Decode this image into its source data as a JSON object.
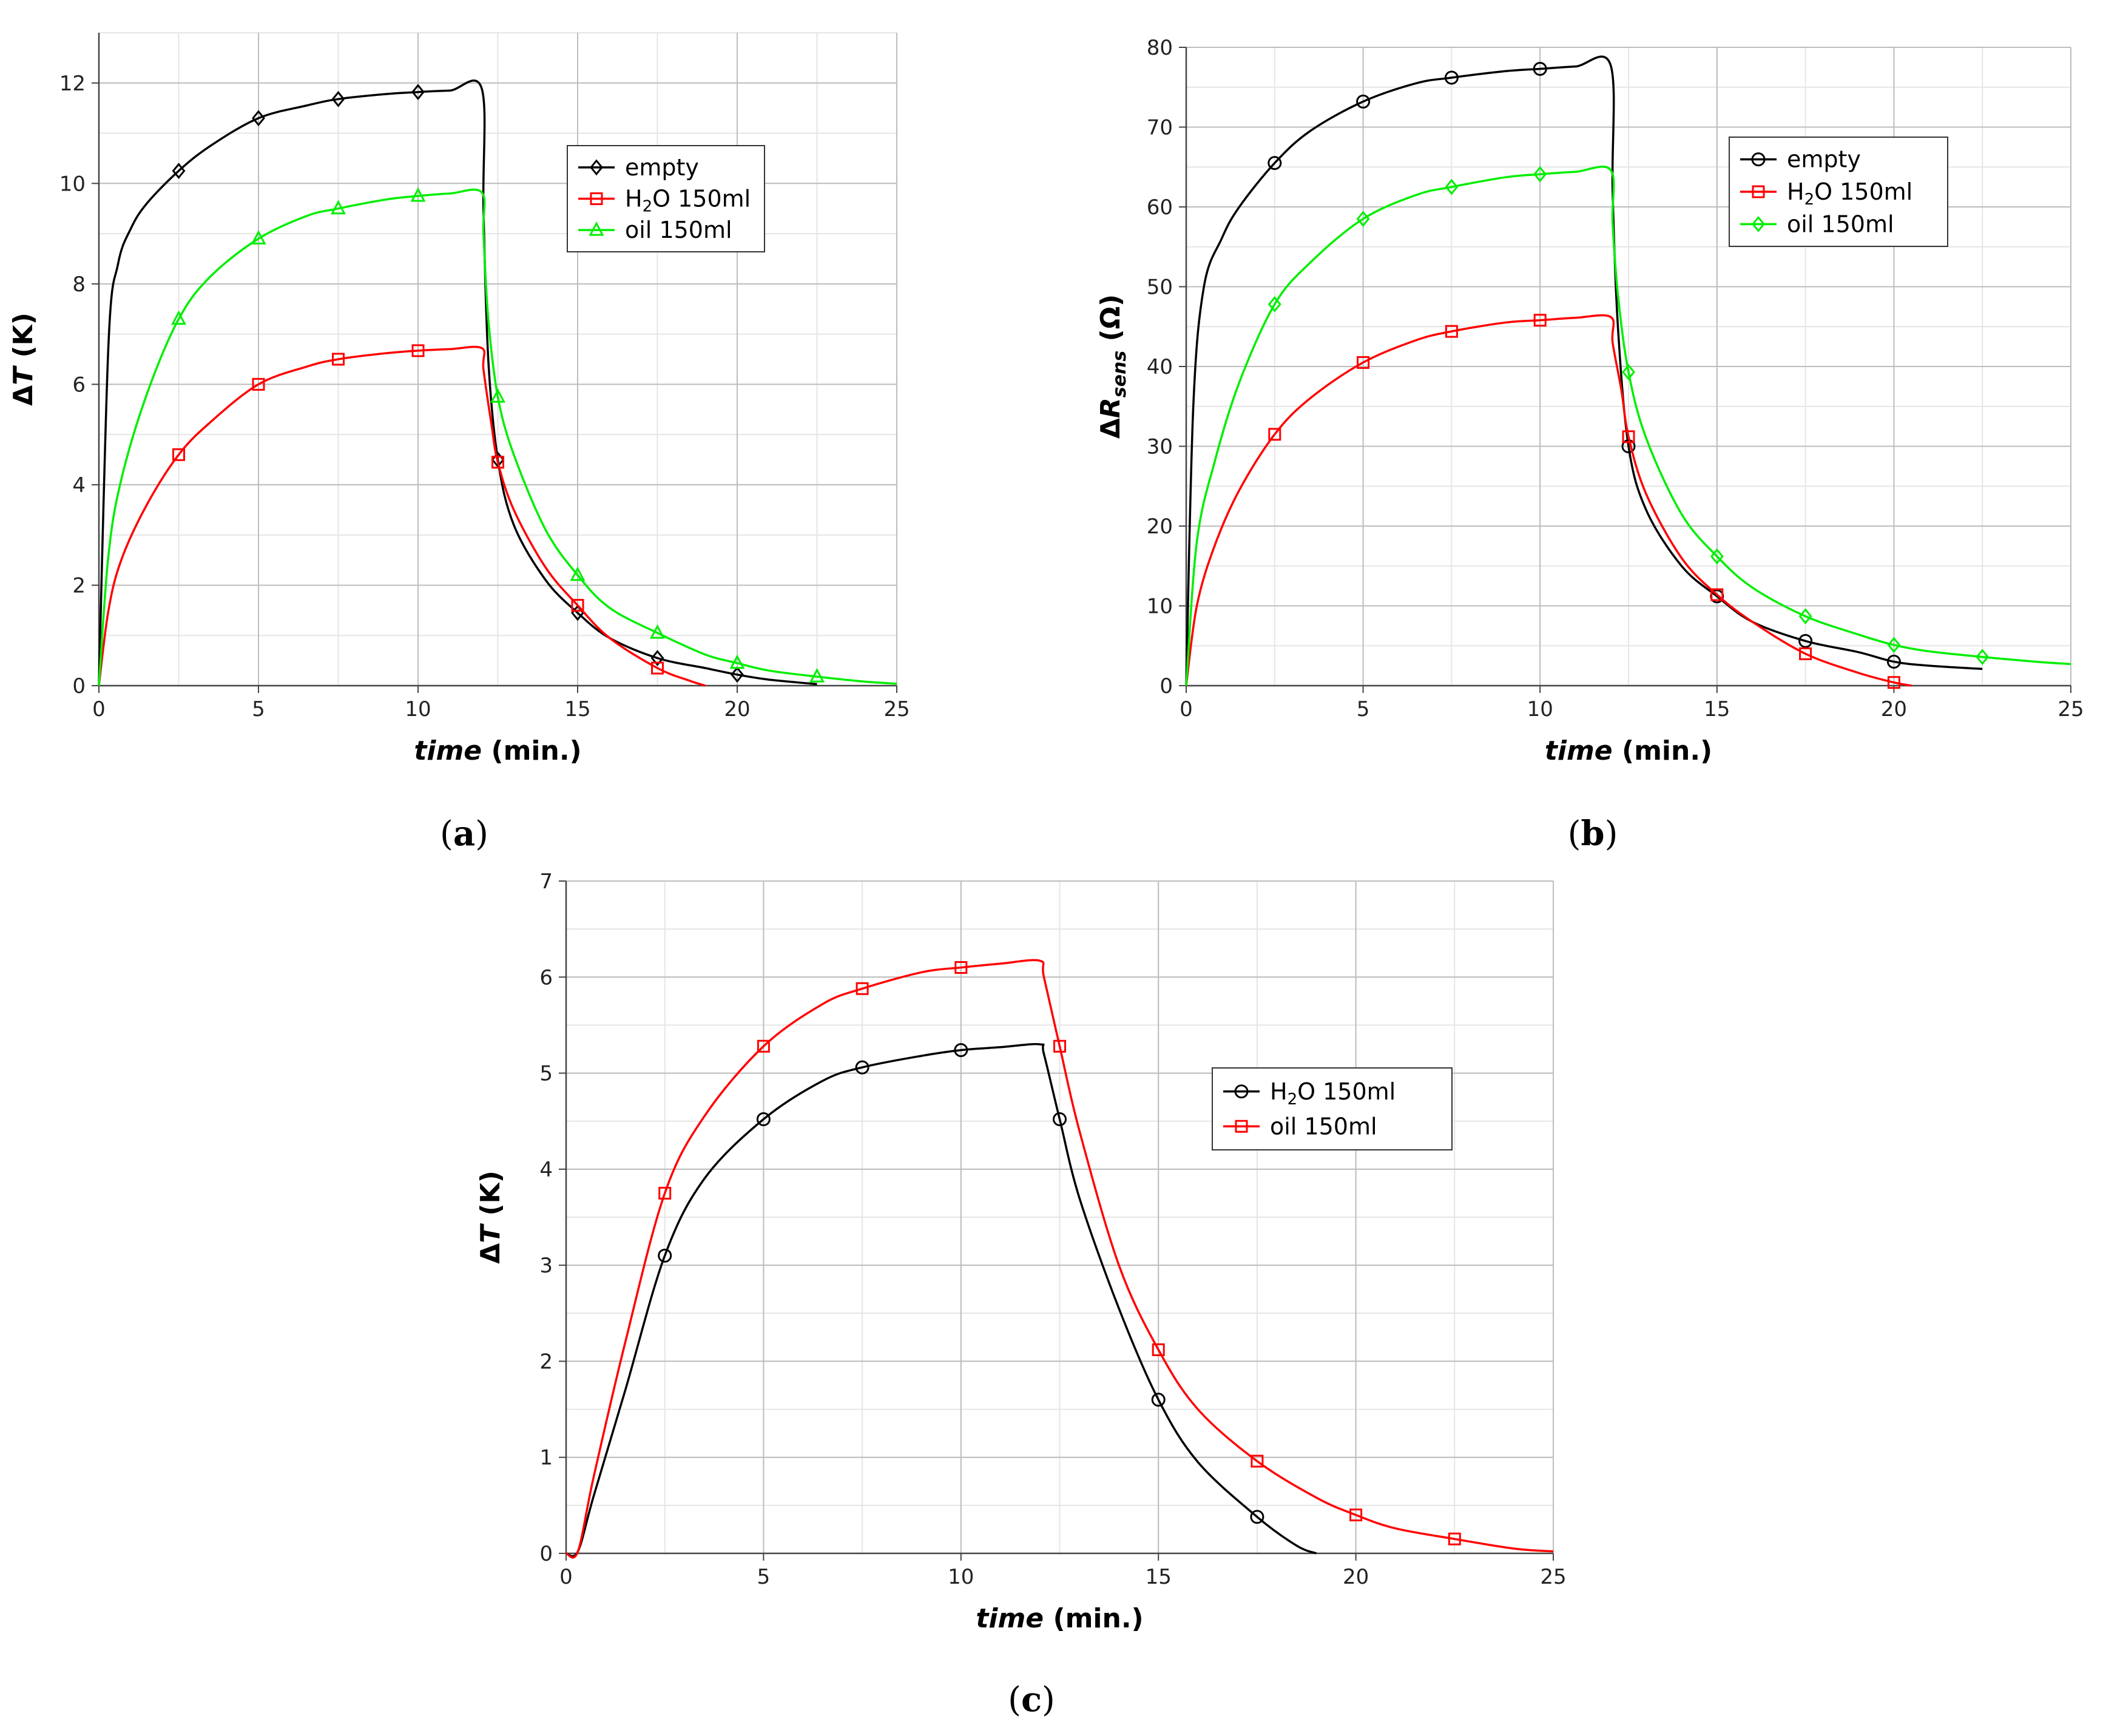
{
  "chart_data": [
    {
      "id": "a",
      "type": "line",
      "caption": "(a)",
      "xlabel_italic": "time",
      "xlabel_unit": " (min.)",
      "ylabel": {
        "parts": [
          [
            "Δ",
            false
          ],
          [
            "T",
            false
          ],
          [
            " (K)",
            false
          ]
        ]
      },
      "xlim": [
        0,
        25
      ],
      "ylim": [
        0,
        13
      ],
      "xticks": [
        0,
        5,
        10,
        15,
        20,
        25
      ],
      "yticks": [
        0,
        2,
        4,
        6,
        8,
        10,
        12
      ],
      "grid": true,
      "legend_position": "top-right",
      "series": [
        {
          "name": "empty",
          "legend": [
            [
              "empty",
              ""
            ]
          ],
          "color": "#000000",
          "marker": "diamond",
          "points": [
            [
              0,
              0
            ],
            [
              0.3,
              6.8
            ],
            [
              0.6,
              8.4
            ],
            [
              1,
              9.1
            ],
            [
              1.5,
              9.6
            ],
            [
              2.5,
              10.25
            ],
            [
              3.5,
              10.75
            ],
            [
              5,
              11.3
            ],
            [
              6.5,
              11.55
            ],
            [
              7.5,
              11.68
            ],
            [
              9,
              11.78
            ],
            [
              10,
              11.82
            ],
            [
              11,
              11.85
            ],
            [
              12,
              11.88
            ],
            [
              12.05,
              9.5
            ],
            [
              12.2,
              6.5
            ],
            [
              12.5,
              4.5
            ],
            [
              13,
              3.2
            ],
            [
              14,
              2.1
            ],
            [
              15,
              1.45
            ],
            [
              16,
              0.95
            ],
            [
              17.5,
              0.55
            ],
            [
              19,
              0.35
            ],
            [
              20,
              0.22
            ],
            [
              21,
              0.12
            ],
            [
              22.5,
              0.03
            ]
          ],
          "markers_x": [
            2.5,
            5,
            7.5,
            10,
            12.5,
            15,
            17.5,
            20
          ]
        },
        {
          "name": "H2O 150ml",
          "legend": [
            [
              "H",
              ""
            ],
            [
              "2",
              "sub"
            ],
            [
              "O 150ml",
              ""
            ]
          ],
          "color": "#ff0000",
          "marker": "square",
          "points": [
            [
              0,
              0
            ],
            [
              0.3,
              1.5
            ],
            [
              0.7,
              2.5
            ],
            [
              1.5,
              3.6
            ],
            [
              2.5,
              4.6
            ],
            [
              3.5,
              5.25
            ],
            [
              5,
              6.0
            ],
            [
              6.5,
              6.35
            ],
            [
              7.5,
              6.5
            ],
            [
              9,
              6.62
            ],
            [
              10,
              6.67
            ],
            [
              11,
              6.7
            ],
            [
              12,
              6.72
            ],
            [
              12.05,
              6.3
            ],
            [
              12.3,
              5.2
            ],
            [
              12.5,
              4.45
            ],
            [
              13,
              3.5
            ],
            [
              14,
              2.35
            ],
            [
              15,
              1.6
            ],
            [
              16,
              0.95
            ],
            [
              17.5,
              0.35
            ],
            [
              18.5,
              0.1
            ],
            [
              19,
              0
            ]
          ],
          "markers_x": [
            2.5,
            5,
            7.5,
            10,
            12.5,
            15,
            17.5
          ]
        },
        {
          "name": "oil 150ml",
          "legend": [
            [
              "oil 150ml",
              ""
            ]
          ],
          "color": "#00ee00",
          "marker": "triangle",
          "points": [
            [
              0,
              0
            ],
            [
              0.3,
              2.6
            ],
            [
              0.7,
              4.1
            ],
            [
              1.5,
              5.8
            ],
            [
              2.5,
              7.3
            ],
            [
              3.5,
              8.15
            ],
            [
              5,
              8.9
            ],
            [
              6.5,
              9.35
            ],
            [
              7.5,
              9.5
            ],
            [
              9,
              9.68
            ],
            [
              10,
              9.75
            ],
            [
              11,
              9.8
            ],
            [
              12,
              9.82
            ],
            [
              12.05,
              9.0
            ],
            [
              12.2,
              7.3
            ],
            [
              12.5,
              5.75
            ],
            [
              13,
              4.6
            ],
            [
              14,
              3.1
            ],
            [
              15,
              2.2
            ],
            [
              16,
              1.55
            ],
            [
              17.5,
              1.05
            ],
            [
              19,
              0.62
            ],
            [
              20,
              0.45
            ],
            [
              21,
              0.3
            ],
            [
              22.5,
              0.18
            ],
            [
              24,
              0.08
            ],
            [
              25,
              0.04
            ]
          ],
          "markers_x": [
            2.5,
            5,
            7.5,
            10,
            12.5,
            15,
            17.5,
            20,
            22.5
          ]
        }
      ]
    },
    {
      "id": "b",
      "type": "line",
      "caption": "(b)",
      "xlabel_italic": "time",
      "xlabel_unit": " (min.)",
      "ylabel": {
        "parts": [
          [
            "Δ",
            false
          ],
          [
            "R",
            false
          ],
          [
            "sens",
            true
          ],
          [
            " (Ω)",
            false
          ]
        ]
      },
      "xlim": [
        0,
        25
      ],
      "ylim": [
        0,
        80
      ],
      "xticks": [
        0,
        5,
        10,
        15,
        20,
        25
      ],
      "yticks": [
        0,
        10,
        20,
        30,
        40,
        50,
        60,
        70,
        80
      ],
      "grid": true,
      "legend_position": "top-right",
      "series": [
        {
          "name": "empty",
          "legend": [
            [
              "empty",
              ""
            ]
          ],
          "color": "#000000",
          "marker": "circle",
          "points": [
            [
              0,
              0
            ],
            [
              0.2,
              35
            ],
            [
              0.5,
              50
            ],
            [
              1,
              56
            ],
            [
              1.5,
              60
            ],
            [
              2.5,
              65.5
            ],
            [
              3.5,
              69.5
            ],
            [
              5,
              73.2
            ],
            [
              6.5,
              75.5
            ],
            [
              7.5,
              76.2
            ],
            [
              9,
              77
            ],
            [
              10,
              77.3
            ],
            [
              11,
              77.6
            ],
            [
              12,
              77.7
            ],
            [
              12.05,
              62
            ],
            [
              12.2,
              45
            ],
            [
              12.5,
              30
            ],
            [
              13,
              22
            ],
            [
              14,
              15
            ],
            [
              15,
              11.2
            ],
            [
              16,
              8
            ],
            [
              17.5,
              5.6
            ],
            [
              19,
              4.2
            ],
            [
              20,
              3.0
            ],
            [
              21,
              2.5
            ],
            [
              22.5,
              2.1
            ]
          ],
          "markers_x": [
            2.5,
            5,
            7.5,
            10,
            12.5,
            15,
            17.5,
            20
          ]
        },
        {
          "name": "H2O 150ml",
          "legend": [
            [
              "H",
              ""
            ],
            [
              "2",
              "sub"
            ],
            [
              "O 150ml",
              ""
            ]
          ],
          "color": "#ff0000",
          "marker": "square",
          "points": [
            [
              0,
              0
            ],
            [
              0.3,
              10
            ],
            [
              0.8,
              17.5
            ],
            [
              1.5,
              24.5
            ],
            [
              2.5,
              31.5
            ],
            [
              3.5,
              36
            ],
            [
              5,
              40.5
            ],
            [
              6.5,
              43.3
            ],
            [
              7.5,
              44.4
            ],
            [
              9,
              45.5
            ],
            [
              10,
              45.8
            ],
            [
              11,
              46.1
            ],
            [
              12,
              46.2
            ],
            [
              12.05,
              43
            ],
            [
              12.3,
              37
            ],
            [
              12.5,
              31.2
            ],
            [
              13,
              24
            ],
            [
              14,
              16
            ],
            [
              15,
              11.4
            ],
            [
              16,
              8
            ],
            [
              17.5,
              4
            ],
            [
              19,
              1.6
            ],
            [
              20,
              0.4
            ],
            [
              20.5,
              0
            ]
          ],
          "markers_x": [
            2.5,
            5,
            7.5,
            10,
            12.5,
            15,
            17.5,
            20
          ]
        },
        {
          "name": "oil 150ml",
          "legend": [
            [
              "oil 150ml",
              ""
            ]
          ],
          "color": "#00ee00",
          "marker": "diamond",
          "points": [
            [
              0,
              0
            ],
            [
              0.3,
              18
            ],
            [
              0.8,
              28
            ],
            [
              1.5,
              38
            ],
            [
              2.5,
              47.8
            ],
            [
              3.5,
              53
            ],
            [
              5,
              58.5
            ],
            [
              6.5,
              61.5
            ],
            [
              7.5,
              62.5
            ],
            [
              9,
              63.7
            ],
            [
              10,
              64.1
            ],
            [
              11,
              64.4
            ],
            [
              12,
              64.6
            ],
            [
              12.05,
              58
            ],
            [
              12.2,
              49
            ],
            [
              12.5,
              39.3
            ],
            [
              13,
              31
            ],
            [
              14,
              21.5
            ],
            [
              15,
              16.2
            ],
            [
              16,
              12.3
            ],
            [
              17.5,
              8.7
            ],
            [
              19,
              6.4
            ],
            [
              20,
              5.1
            ],
            [
              21,
              4.3
            ],
            [
              22.5,
              3.6
            ],
            [
              24,
              3.0
            ],
            [
              25,
              2.7
            ]
          ],
          "markers_x": [
            2.5,
            5,
            7.5,
            10,
            12.5,
            15,
            17.5,
            20,
            22.5
          ]
        }
      ]
    },
    {
      "id": "c",
      "type": "line",
      "caption": "(c)",
      "xlabel_italic": "time",
      "xlabel_unit": " (min.)",
      "ylabel": {
        "parts": [
          [
            "Δ",
            false
          ],
          [
            "T",
            false
          ],
          [
            " (K)",
            false
          ]
        ]
      },
      "xlim": [
        0,
        25
      ],
      "ylim": [
        0,
        7
      ],
      "xticks": [
        0,
        5,
        10,
        15,
        20,
        25
      ],
      "yticks": [
        0,
        1,
        2,
        3,
        4,
        5,
        6,
        7
      ],
      "grid": true,
      "legend_position": "top-right",
      "series": [
        {
          "name": "H2O 150ml",
          "legend": [
            [
              "H",
              ""
            ],
            [
              "2",
              "sub"
            ],
            [
              "O 150ml",
              ""
            ]
          ],
          "color": "#000000",
          "marker": "circle",
          "points": [
            [
              0,
              0
            ],
            [
              0.3,
              0.02
            ],
            [
              0.7,
              0.6
            ],
            [
              1.5,
              1.7
            ],
            [
              2.5,
              3.1
            ],
            [
              3.5,
              3.9
            ],
            [
              5,
              4.52
            ],
            [
              6.5,
              4.92
            ],
            [
              7.5,
              5.06
            ],
            [
              9,
              5.18
            ],
            [
              10,
              5.24
            ],
            [
              11,
              5.27
            ],
            [
              12,
              5.3
            ],
            [
              12.1,
              5.2
            ],
            [
              12.5,
              4.52
            ],
            [
              13,
              3.7
            ],
            [
              14,
              2.55
            ],
            [
              15,
              1.6
            ],
            [
              16,
              0.95
            ],
            [
              17.5,
              0.38
            ],
            [
              18.5,
              0.08
            ],
            [
              19,
              0
            ]
          ],
          "markers_x": [
            2.5,
            5,
            7.5,
            10,
            12.5,
            15,
            17.5
          ]
        },
        {
          "name": "oil 150ml",
          "legend": [
            [
              "oil 150ml",
              ""
            ]
          ],
          "color": "#ff0000",
          "marker": "square",
          "points": [
            [
              0,
              0
            ],
            [
              0.3,
              0.02
            ],
            [
              0.7,
              0.8
            ],
            [
              1.5,
              2.2
            ],
            [
              2.5,
              3.75
            ],
            [
              3.5,
              4.55
            ],
            [
              5,
              5.28
            ],
            [
              6.5,
              5.72
            ],
            [
              7.5,
              5.88
            ],
            [
              9,
              6.05
            ],
            [
              10,
              6.1
            ],
            [
              11,
              6.14
            ],
            [
              12,
              6.17
            ],
            [
              12.1,
              6.0
            ],
            [
              12.5,
              5.28
            ],
            [
              13,
              4.4
            ],
            [
              14,
              3.0
            ],
            [
              15,
              2.12
            ],
            [
              16,
              1.5
            ],
            [
              17.5,
              0.96
            ],
            [
              19,
              0.58
            ],
            [
              20,
              0.4
            ],
            [
              21,
              0.26
            ],
            [
              22.5,
              0.15
            ],
            [
              24,
              0.05
            ],
            [
              25,
              0.02
            ]
          ],
          "markers_x": [
            2.5,
            5,
            7.5,
            10,
            12.5,
            15,
            17.5,
            20,
            22.5
          ]
        }
      ]
    }
  ]
}
